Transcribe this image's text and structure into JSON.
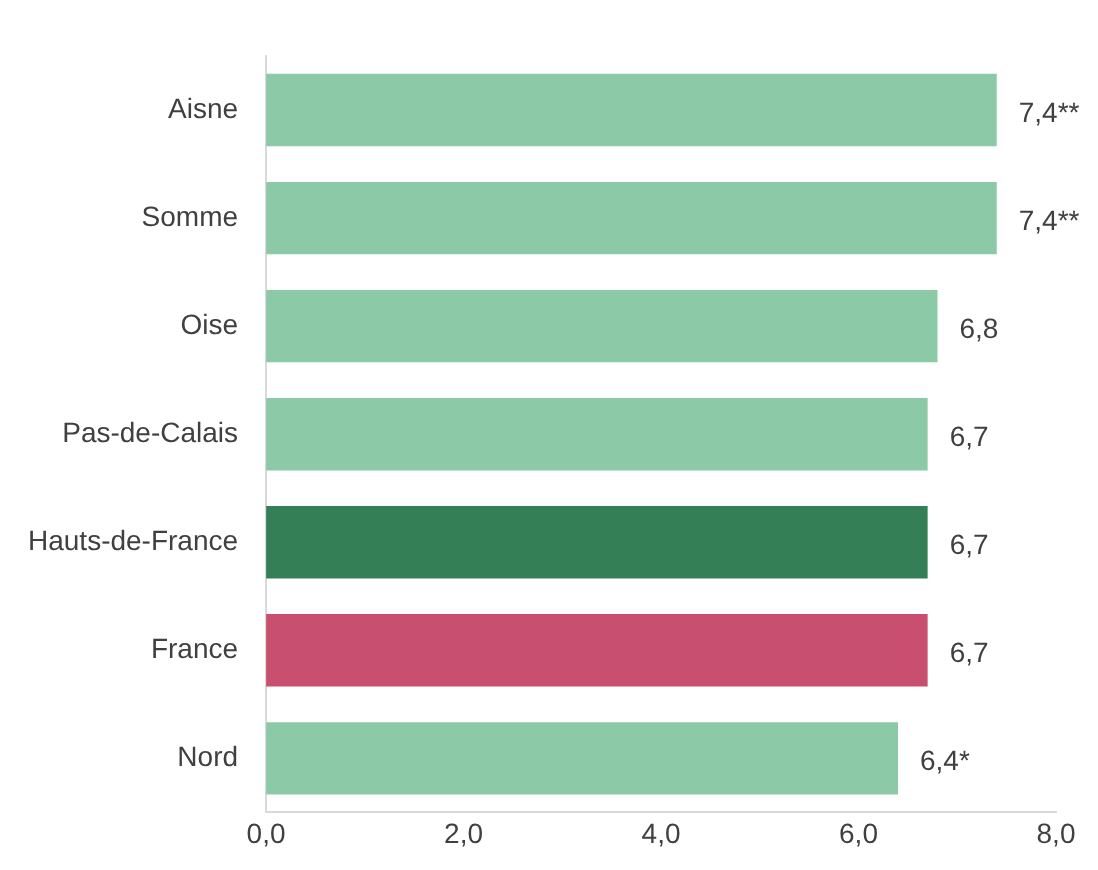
{
  "chart_data": {
    "type": "bar",
    "orientation": "horizontal",
    "categories": [
      "Aisne",
      "Somme",
      "Oise",
      "Pas-de-Calais",
      "Hauts-de-France",
      "France",
      "Nord"
    ],
    "values": [
      7.4,
      7.4,
      6.8,
      6.7,
      6.7,
      6.7,
      6.4
    ],
    "value_labels": [
      "7,4**",
      "7,4**",
      "6,8",
      "6,7",
      "6,7",
      "6,7",
      "6,4*"
    ],
    "colors": [
      "#8cc9a6",
      "#8cc9a6",
      "#8cc9a6",
      "#8cc9a6",
      "#357f57",
      "#c84f6f",
      "#8cc9a6"
    ],
    "xlim": [
      0,
      8
    ],
    "xticks": [
      {
        "value": 0,
        "label": "0,0"
      },
      {
        "value": 2,
        "label": "2,0"
      },
      {
        "value": 4,
        "label": "4,0"
      },
      {
        "value": 6,
        "label": "6,0"
      },
      {
        "value": 8,
        "label": "8,0"
      }
    ],
    "grid": false,
    "legend": false
  }
}
